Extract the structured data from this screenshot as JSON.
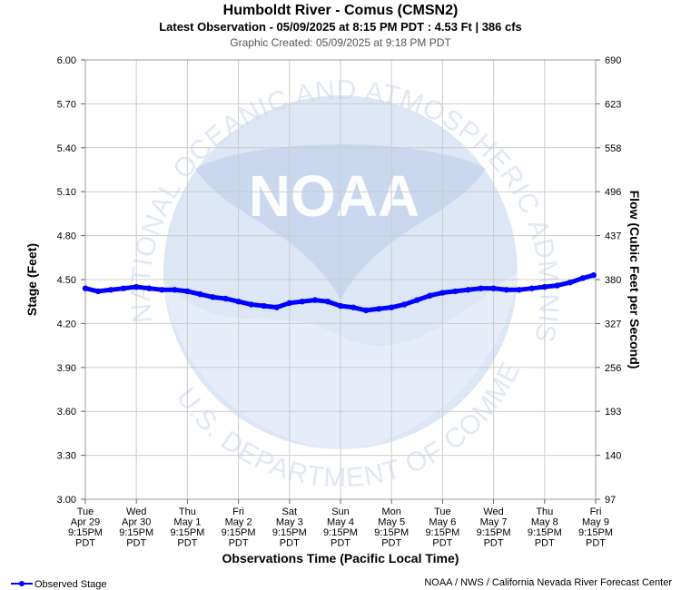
{
  "header": {
    "title": "Humboldt River - Comus (CMSN2)",
    "subtitle": "Latest Observation - 05/09/2025 at 8:15 PM PDT : 4.53 Ft | 386 cfs",
    "created": "Graphic Created: 05/09/2025 at 9:18 PM PDT"
  },
  "watermark": {
    "logo_text": "NOAA",
    "arc_top": "NATIONAL OCEANIC AND ATMOSPHERIC ADMINISTRATION",
    "arc_bottom": "U.S. DEPARTMENT OF COMMERCE"
  },
  "footer": {
    "legend_label": "Observed Stage",
    "credit": "NOAA / NWS / California Nevada River Forecast Center"
  },
  "colors": {
    "series": "#0000ff",
    "grid": "#cccccc",
    "watermark": "#dde6f4"
  },
  "chart_data": {
    "type": "line",
    "title": "Humboldt River - Comus (CMSN2)",
    "xlabel": "Observations Time (Pacific Local Time)",
    "ylabel": "Stage (Feet)",
    "y2label": "Flow (Cubic Feet per Second)",
    "ylim": [
      3.0,
      6.0
    ],
    "yticks": [
      "6.00",
      "5.70",
      "5.40",
      "5.10",
      "4.80",
      "4.50",
      "4.20",
      "3.90",
      "3.60",
      "3.30",
      "3.00"
    ],
    "y2ticks": [
      "690",
      "623",
      "558",
      "496",
      "437",
      "380",
      "327",
      "256",
      "193",
      "140",
      "97"
    ],
    "xticks": [
      [
        "Tue",
        "Apr 29",
        "9:15PM",
        "PDT"
      ],
      [
        "Wed",
        "Apr 30",
        "9:15PM",
        "PDT"
      ],
      [
        "Thu",
        "May 1",
        "9:15PM",
        "PDT"
      ],
      [
        "Fri",
        "May 2",
        "9:15PM",
        "PDT"
      ],
      [
        "Sat",
        "May 3",
        "9:15PM",
        "PDT"
      ],
      [
        "Sun",
        "May 4",
        "9:15PM",
        "PDT"
      ],
      [
        "Mon",
        "May 5",
        "9:15PM",
        "PDT"
      ],
      [
        "Tue",
        "May 6",
        "9:15PM",
        "PDT"
      ],
      [
        "Wed",
        "May 7",
        "9:15PM",
        "PDT"
      ],
      [
        "Thu",
        "May 8",
        "9:15PM",
        "PDT"
      ],
      [
        "Fri",
        "May 9",
        "9:15PM",
        "PDT"
      ]
    ],
    "grid": true,
    "legend": "bottom-left",
    "series": [
      {
        "name": "Observed Stage",
        "x_days": [
          0,
          0.25,
          0.5,
          0.75,
          1.0,
          1.25,
          1.5,
          1.75,
          2.0,
          2.25,
          2.5,
          2.75,
          3.0,
          3.25,
          3.5,
          3.75,
          4.0,
          4.25,
          4.5,
          4.75,
          5.0,
          5.25,
          5.5,
          5.75,
          6.0,
          6.25,
          6.5,
          6.75,
          7.0,
          7.25,
          7.5,
          7.75,
          8.0,
          8.25,
          8.5,
          8.75,
          9.0,
          9.25,
          9.5,
          9.75,
          9.96
        ],
        "values": [
          4.44,
          4.42,
          4.43,
          4.44,
          4.45,
          4.44,
          4.43,
          4.43,
          4.42,
          4.4,
          4.38,
          4.37,
          4.35,
          4.33,
          4.32,
          4.31,
          4.34,
          4.35,
          4.36,
          4.35,
          4.32,
          4.31,
          4.29,
          4.3,
          4.31,
          4.33,
          4.36,
          4.39,
          4.41,
          4.42,
          4.43,
          4.44,
          4.44,
          4.43,
          4.43,
          4.44,
          4.45,
          4.46,
          4.48,
          4.51,
          4.53
        ]
      }
    ]
  }
}
